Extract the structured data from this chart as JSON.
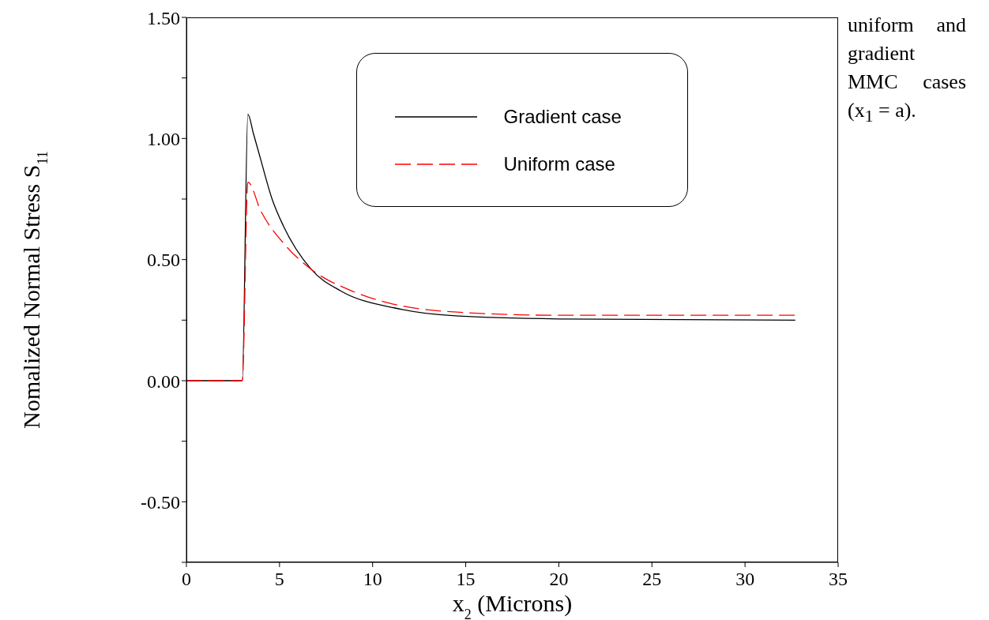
{
  "chart_data": {
    "type": "line",
    "xlabel": "x$_{2}$  (Microns)",
    "ylabel": "Nomalized Normal Stress S$_{11}$",
    "annotations": [
      "uniform and gradient MMC cases (x$_{1}$ = a)."
    ],
    "xlim": [
      0,
      35
    ],
    "xticks": [
      0,
      5,
      10,
      15,
      20,
      25,
      30,
      35
    ],
    "ylim": [
      -0.75,
      1.5
    ],
    "yticks": [
      {
        "value": -0.75,
        "label": null
      },
      {
        "value": -0.5,
        "label": "-0.50"
      },
      {
        "value": -0.25,
        "label": null
      },
      {
        "value": 0,
        "label": "0.00"
      },
      {
        "value": 0.25,
        "label": null
      },
      {
        "value": 0.5,
        "label": "0.50"
      },
      {
        "value": 0.75,
        "label": null
      },
      {
        "value": 1,
        "label": "1.00"
      },
      {
        "value": 1.25,
        "label": null
      },
      {
        "value": 1.5,
        "label": "1.50"
      }
    ],
    "legend": "top right",
    "marker": "none",
    "series": [
      {
        "name": "Gradient case",
        "color": "#000000",
        "line_style": "solid",
        "x": [
          0,
          3.0,
          3.3,
          3.6,
          4.0,
          4.6,
          5.2,
          6.7,
          8.3,
          11.2,
          14.0,
          20,
          32.7
        ],
        "values": [
          0,
          0,
          1.1,
          1.02,
          0.91,
          0.75,
          0.64,
          0.46,
          0.37,
          0.3,
          0.27,
          0.255,
          0.25
        ]
      },
      {
        "name": "Uniform case",
        "color": "#ff0000",
        "line_style": "dashed",
        "x": [
          0,
          3.0,
          3.3,
          4.0,
          5.3,
          6.7,
          8.9,
          10.9,
          15.2,
          20,
          32.7
        ],
        "values": [
          0,
          0,
          0.82,
          0.7,
          0.56,
          0.46,
          0.37,
          0.32,
          0.28,
          0.27,
          0.27
        ]
      }
    ]
  }
}
